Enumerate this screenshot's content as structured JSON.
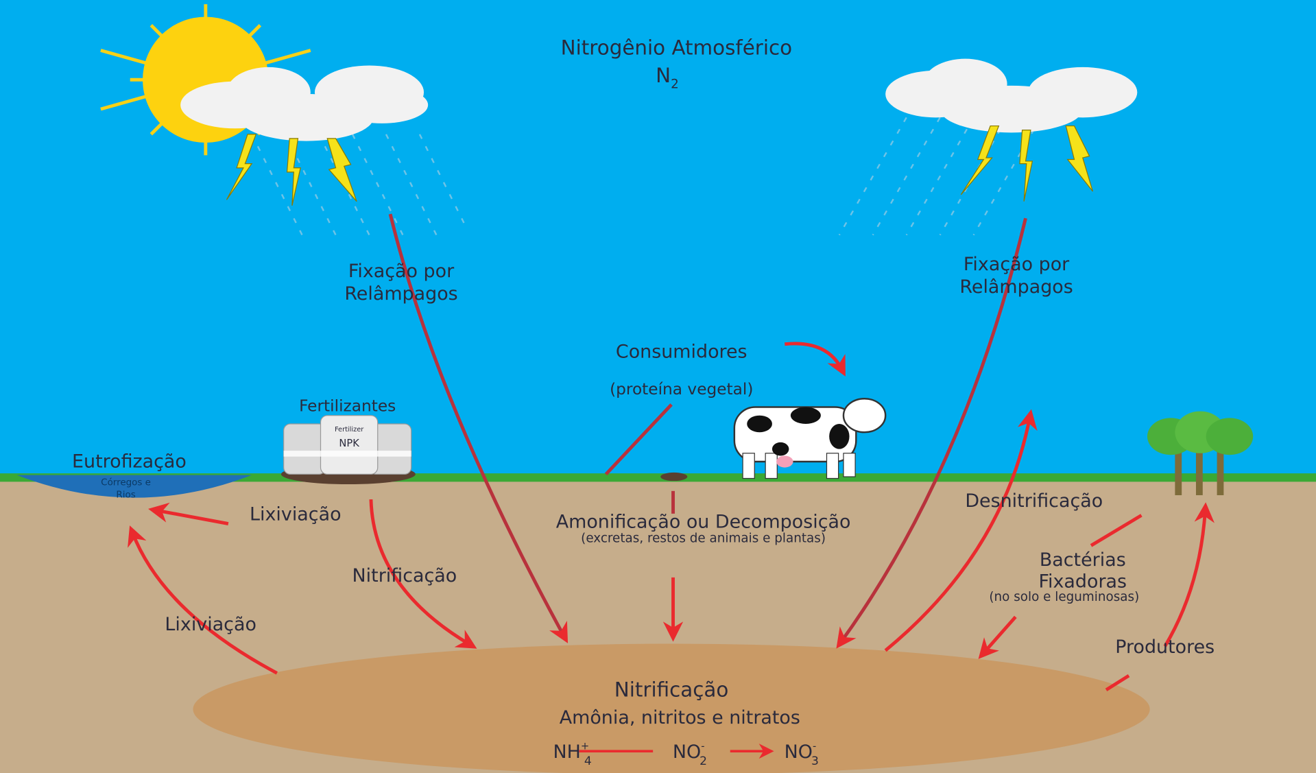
{
  "sky": {
    "title": "Nitrogênio Atmosférico",
    "formula": {
      "base": "N",
      "sub": "2"
    }
  },
  "labels": {
    "lightning_left": [
      "Fixação por",
      "Relâmpagos"
    ],
    "lightning_right": [
      "Fixação por",
      "Relâmpagos"
    ],
    "consumers": "Consumidores",
    "consumers_note": "(proteína vegetal)",
    "fertilizers": "Fertilizantes",
    "bag_brand": "Fertilizer",
    "bag_label": "NPK",
    "eutrophication": "Eutrofização",
    "streams": [
      "Córregos e",
      "Rios"
    ],
    "leaching_top": "Lixiviação",
    "leaching_bottom": "Lixiviação",
    "nitrification_left": "Nitrificação",
    "ammonification": "Amonificação ou Decomposição",
    "ammonification_note": "(excretas, restos de animais e plantas)",
    "denitrification": "Desnitrificação",
    "bacteria": [
      "Bactérias",
      "Fixadoras"
    ],
    "bacteria_note": "(no solo e leguminosas)",
    "producers": "Produtores"
  },
  "pool": {
    "title": "Nitrificação",
    "subtitle": "Amônia, nitritos e nitratos",
    "chemistry": [
      {
        "base": "NH",
        "sub": "4",
        "sup": "+"
      },
      {
        "base": "NO",
        "sub": "2",
        "sup": "-"
      },
      {
        "base": "NO",
        "sub": "3",
        "sup": "-"
      }
    ]
  }
}
